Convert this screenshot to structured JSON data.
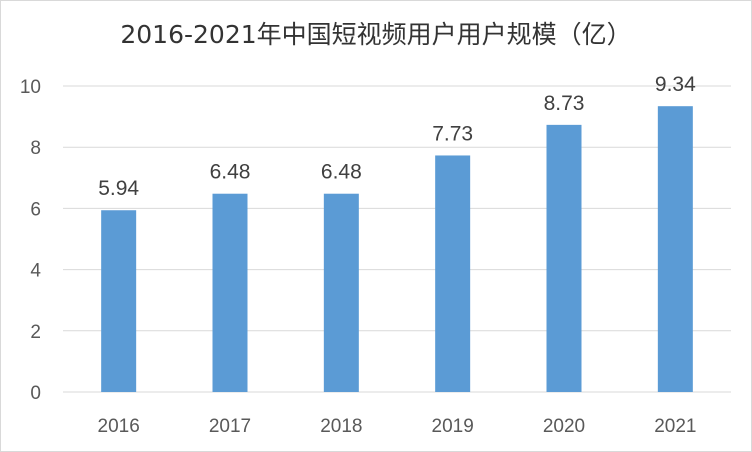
{
  "chart_data": {
    "type": "bar",
    "title": "2016-2021年中国短视频用户用户规模（亿）",
    "categories": [
      "2016",
      "2017",
      "2018",
      "2019",
      "2020",
      "2021"
    ],
    "values": [
      5.94,
      6.48,
      6.48,
      7.73,
      8.73,
      9.34
    ],
    "data_labels": [
      "5.94",
      "6.48",
      "6.48",
      "7.73",
      "8.73",
      "9.34"
    ],
    "y_ticks": [
      "0",
      "2",
      "4",
      "6",
      "8",
      "10"
    ],
    "ylim": [
      0,
      10
    ],
    "xlabel": "",
    "ylabel": "",
    "grid": true,
    "legend": "none",
    "bar_color": "#5b9bd5",
    "grid_color": "#d9d9d9"
  }
}
